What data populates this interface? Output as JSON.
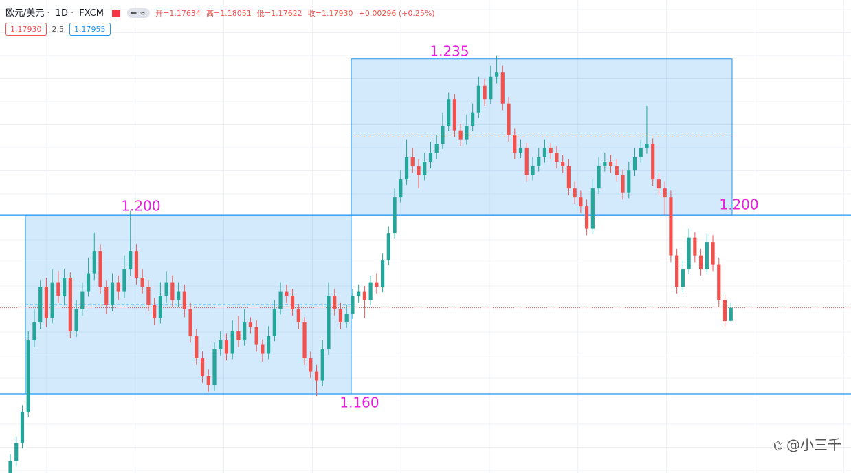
{
  "header": {
    "symbol": "欧元/美元",
    "interval": "1D",
    "source": "FXCM",
    "open": "开=1.17634",
    "high": "高=1.18051",
    "low": "低=1.17622",
    "close": "收=1.17930",
    "change": "+0.00296 (+0.25%)",
    "bid": "1.17930",
    "spread": "2.5",
    "ask": "1.17955"
  },
  "watermark": "@小三千",
  "chart_data": {
    "type": "candlestick",
    "up_color": "#26a69a",
    "down_color": "#ef5350",
    "ylim": [
      1.1423,
      1.2482
    ],
    "ohlc": [
      [
        1.141,
        1.1465,
        1.1398,
        1.145
      ],
      [
        1.145,
        1.1505,
        1.1438,
        1.149
      ],
      [
        1.149,
        1.1575,
        1.1478,
        1.156
      ],
      [
        1.156,
        1.174,
        1.1548,
        1.172
      ],
      [
        1.172,
        1.179,
        1.1705,
        1.176
      ],
      [
        1.176,
        1.1855,
        1.1745,
        1.184
      ],
      [
        1.184,
        1.186,
        1.175,
        1.177
      ],
      [
        1.177,
        1.188,
        1.1758,
        1.185
      ],
      [
        1.185,
        1.1875,
        1.1805,
        1.182
      ],
      [
        1.182,
        1.188,
        1.18,
        1.186
      ],
      [
        1.186,
        1.1872,
        1.1725,
        1.174
      ],
      [
        1.174,
        1.181,
        1.1728,
        1.179
      ],
      [
        1.179,
        1.185,
        1.1775,
        1.183
      ],
      [
        1.183,
        1.1905,
        1.1818,
        1.187
      ],
      [
        1.187,
        1.196,
        1.1855,
        1.192
      ],
      [
        1.192,
        1.1935,
        1.1825,
        1.184
      ],
      [
        1.184,
        1.1855,
        1.178,
        1.18
      ],
      [
        1.18,
        1.187,
        1.1785,
        1.185
      ],
      [
        1.185,
        1.1865,
        1.181,
        1.183
      ],
      [
        1.183,
        1.191,
        1.1815,
        1.188
      ],
      [
        1.188,
        1.201,
        1.1865,
        1.192
      ],
      [
        1.192,
        1.1935,
        1.1845,
        1.186
      ],
      [
        1.186,
        1.188,
        1.1825,
        1.184
      ],
      [
        1.184,
        1.1855,
        1.1785,
        1.18
      ],
      [
        1.18,
        1.1815,
        1.1755,
        1.177
      ],
      [
        1.177,
        1.185,
        1.1758,
        1.182
      ],
      [
        1.182,
        1.1875,
        1.1805,
        1.185
      ],
      [
        1.185,
        1.1865,
        1.1795,
        1.181
      ],
      [
        1.181,
        1.185,
        1.1795,
        1.183
      ],
      [
        1.183,
        1.1845,
        1.1772,
        1.179
      ],
      [
        1.179,
        1.1805,
        1.1715,
        1.173
      ],
      [
        1.173,
        1.1745,
        1.1665,
        1.168
      ],
      [
        1.168,
        1.1695,
        1.1625,
        1.164
      ],
      [
        1.164,
        1.1655,
        1.1605,
        1.162
      ],
      [
        1.162,
        1.1715,
        1.1608,
        1.17
      ],
      [
        1.17,
        1.174,
        1.1685,
        1.172
      ],
      [
        1.172,
        1.1735,
        1.1675,
        1.169
      ],
      [
        1.169,
        1.1765,
        1.1678,
        1.174
      ],
      [
        1.174,
        1.1775,
        1.1705,
        1.172
      ],
      [
        1.172,
        1.179,
        1.1708,
        1.176
      ],
      [
        1.176,
        1.1772,
        1.1735,
        1.175
      ],
      [
        1.175,
        1.1765,
        1.1695,
        1.171
      ],
      [
        1.171,
        1.1722,
        1.1672,
        1.169
      ],
      [
        1.169,
        1.1752,
        1.1678,
        1.173
      ],
      [
        1.173,
        1.181,
        1.1718,
        1.179
      ],
      [
        1.179,
        1.185,
        1.1778,
        1.183
      ],
      [
        1.183,
        1.1845,
        1.1805,
        1.182
      ],
      [
        1.182,
        1.1835,
        1.1775,
        1.179
      ],
      [
        1.179,
        1.1802,
        1.1745,
        1.176
      ],
      [
        1.176,
        1.1772,
        1.1665,
        1.168
      ],
      [
        1.168,
        1.1695,
        1.1635,
        1.165
      ],
      [
        1.165,
        1.1665,
        1.1595,
        1.163
      ],
      [
        1.163,
        1.172,
        1.1618,
        1.17
      ],
      [
        1.17,
        1.185,
        1.1688,
        1.182
      ],
      [
        1.182,
        1.1835,
        1.1775,
        1.179
      ],
      [
        1.179,
        1.1805,
        1.1745,
        1.176
      ],
      [
        1.176,
        1.18,
        1.1748,
        1.178
      ],
      [
        1.178,
        1.1835,
        1.1768,
        1.182
      ],
      [
        1.182,
        1.1845,
        1.1805,
        1.183
      ],
      [
        1.183,
        1.1842,
        1.177,
        1.181
      ],
      [
        1.181,
        1.1865,
        1.1798,
        1.185
      ],
      [
        1.185,
        1.187,
        1.1825,
        1.184
      ],
      [
        1.184,
        1.1915,
        1.1828,
        1.19
      ],
      [
        1.19,
        1.1975,
        1.1888,
        1.196
      ],
      [
        1.196,
        1.206,
        1.1948,
        1.204
      ],
      [
        1.204,
        1.21,
        1.2028,
        1.208
      ],
      [
        1.208,
        1.217,
        1.2068,
        1.213
      ],
      [
        1.213,
        1.215,
        1.2095,
        1.211
      ],
      [
        1.211,
        1.2125,
        1.206,
        1.209
      ],
      [
        1.209,
        1.214,
        1.2078,
        1.212
      ],
      [
        1.212,
        1.2165,
        1.2105,
        1.214
      ],
      [
        1.214,
        1.218,
        1.2125,
        1.216
      ],
      [
        1.216,
        1.223,
        1.2148,
        1.22
      ],
      [
        1.22,
        1.2275,
        1.2188,
        1.226
      ],
      [
        1.226,
        1.2272,
        1.2175,
        1.219
      ],
      [
        1.219,
        1.2205,
        1.2155,
        1.217
      ],
      [
        1.217,
        1.2225,
        1.2158,
        1.22
      ],
      [
        1.22,
        1.225,
        1.2188,
        1.223
      ],
      [
        1.223,
        1.231,
        1.2218,
        1.229
      ],
      [
        1.229,
        1.2305,
        1.2245,
        1.226
      ],
      [
        1.226,
        1.2335,
        1.2248,
        1.231
      ],
      [
        1.231,
        1.2358,
        1.2295,
        1.232
      ],
      [
        1.232,
        1.2335,
        1.2235,
        1.225
      ],
      [
        1.225,
        1.2265,
        1.2165,
        1.218
      ],
      [
        1.218,
        1.2195,
        1.2125,
        1.214
      ],
      [
        1.214,
        1.217,
        1.2128,
        1.215
      ],
      [
        1.215,
        1.2162,
        1.2075,
        1.209
      ],
      [
        1.209,
        1.213,
        1.2078,
        1.211
      ],
      [
        1.211,
        1.215,
        1.2098,
        1.213
      ],
      [
        1.213,
        1.217,
        1.2118,
        1.215
      ],
      [
        1.215,
        1.2162,
        1.2125,
        1.214
      ],
      [
        1.214,
        1.2155,
        1.2105,
        1.212
      ],
      [
        1.212,
        1.2135,
        1.2095,
        1.211
      ],
      [
        1.211,
        1.2125,
        1.2045,
        1.206
      ],
      [
        1.206,
        1.2075,
        1.2025,
        1.204
      ],
      [
        1.204,
        1.2055,
        1.2005,
        1.202
      ],
      [
        1.202,
        1.2035,
        1.1955,
        1.197
      ],
      [
        1.197,
        1.208,
        1.1958,
        1.206
      ],
      [
        1.206,
        1.213,
        1.2048,
        1.211
      ],
      [
        1.211,
        1.214,
        1.2098,
        1.212
      ],
      [
        1.212,
        1.2135,
        1.2095,
        1.211
      ],
      [
        1.211,
        1.2125,
        1.2075,
        1.209
      ],
      [
        1.209,
        1.2102,
        1.2035,
        1.205
      ],
      [
        1.205,
        1.212,
        1.2038,
        1.21
      ],
      [
        1.21,
        1.215,
        1.2088,
        1.213
      ],
      [
        1.213,
        1.217,
        1.2118,
        1.215
      ],
      [
        1.215,
        1.2245,
        1.2138,
        1.216
      ],
      [
        1.216,
        1.2172,
        1.2065,
        1.208
      ],
      [
        1.208,
        1.2095,
        1.2045,
        1.206
      ],
      [
        1.206,
        1.2075,
        1.2,
        1.204
      ],
      [
        1.204,
        1.2055,
        1.1895,
        1.191
      ],
      [
        1.191,
        1.1925,
        1.1825,
        1.184
      ],
      [
        1.184,
        1.19,
        1.1828,
        1.188
      ],
      [
        1.188,
        1.197,
        1.1868,
        1.195
      ],
      [
        1.195,
        1.1962,
        1.1895,
        1.191
      ],
      [
        1.191,
        1.1925,
        1.1865,
        1.188
      ],
      [
        1.188,
        1.196,
        1.1868,
        1.194
      ],
      [
        1.194,
        1.1955,
        1.1875,
        1.189
      ],
      [
        1.189,
        1.1905,
        1.1795,
        1.181
      ],
      [
        1.181,
        1.1822,
        1.175,
        1.1763
      ],
      [
        1.17634,
        1.18051,
        1.17622,
        1.1793
      ]
    ],
    "levels": [
      1.2,
      1.16
    ],
    "zones": [
      {
        "low": 1.16,
        "high": 1.2,
        "mid": 1.18
      },
      {
        "low": 1.2,
        "high": 1.235,
        "mid": 1.2175
      }
    ],
    "annotations": [
      {
        "value": 1.2,
        "label": "1.200"
      },
      {
        "value": 1.16,
        "label": "1.160"
      },
      {
        "value": 1.235,
        "label": "1.235"
      },
      {
        "value": 1.2,
        "label": "1.200"
      }
    ]
  }
}
